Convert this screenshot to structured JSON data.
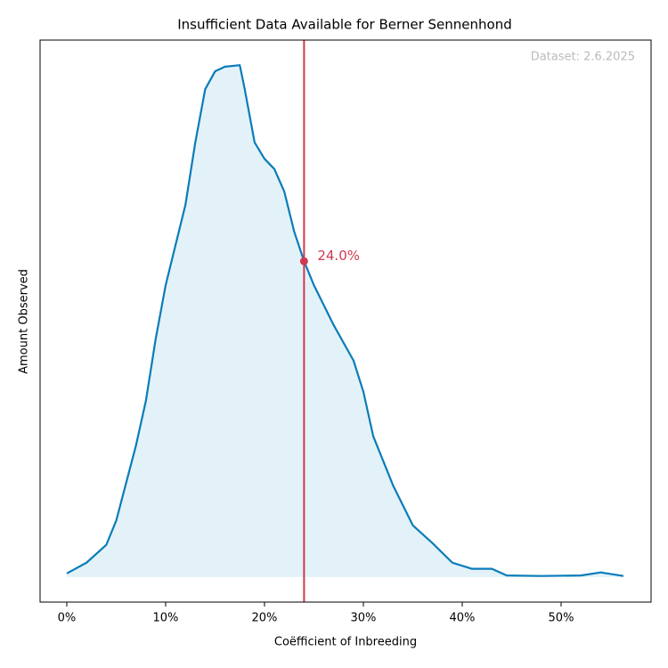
{
  "chart_data": {
    "type": "area",
    "title": "Insufficient Data Available for Berner Sennenhond",
    "watermark": "Dataset: 2.6.2025",
    "xlabel": "Coëfficient of Inbreeding",
    "ylabel": "Amount Observed",
    "xlim": [
      -2.7,
      59.1
    ],
    "ylim": [
      -0.049,
      1.049
    ],
    "xticks": [
      {
        "value": 0,
        "label": "0%"
      },
      {
        "value": 10,
        "label": "10%"
      },
      {
        "value": 20,
        "label": "20%"
      },
      {
        "value": 30,
        "label": "30%"
      },
      {
        "value": 40,
        "label": "40%"
      },
      {
        "value": 50,
        "label": "50%"
      }
    ],
    "color": "#0a7cb9",
    "fill_color": "#e3f2f8",
    "x": [
      0,
      2,
      4,
      5,
      7,
      8,
      9,
      10,
      12,
      13,
      14,
      15,
      16,
      17.5,
      18,
      19,
      20,
      21,
      22,
      23,
      24,
      25,
      27,
      29,
      30,
      31,
      33,
      35,
      37,
      39,
      41,
      43,
      44.5,
      48,
      52,
      54,
      56.3
    ],
    "values": [
      0.007,
      0.028,
      0.063,
      0.11,
      0.257,
      0.344,
      0.466,
      0.57,
      0.727,
      0.849,
      0.953,
      0.988,
      0.997,
      1.0,
      0.953,
      0.849,
      0.817,
      0.797,
      0.753,
      0.675,
      0.617,
      0.57,
      0.492,
      0.423,
      0.362,
      0.275,
      0.179,
      0.101,
      0.066,
      0.028,
      0.016,
      0.016,
      0.003,
      0.002,
      0.003,
      0.009,
      0.002
    ],
    "marker": {
      "x": 24.0,
      "y": 0.617,
      "label": "24.0%",
      "color": "#d0394f"
    }
  }
}
